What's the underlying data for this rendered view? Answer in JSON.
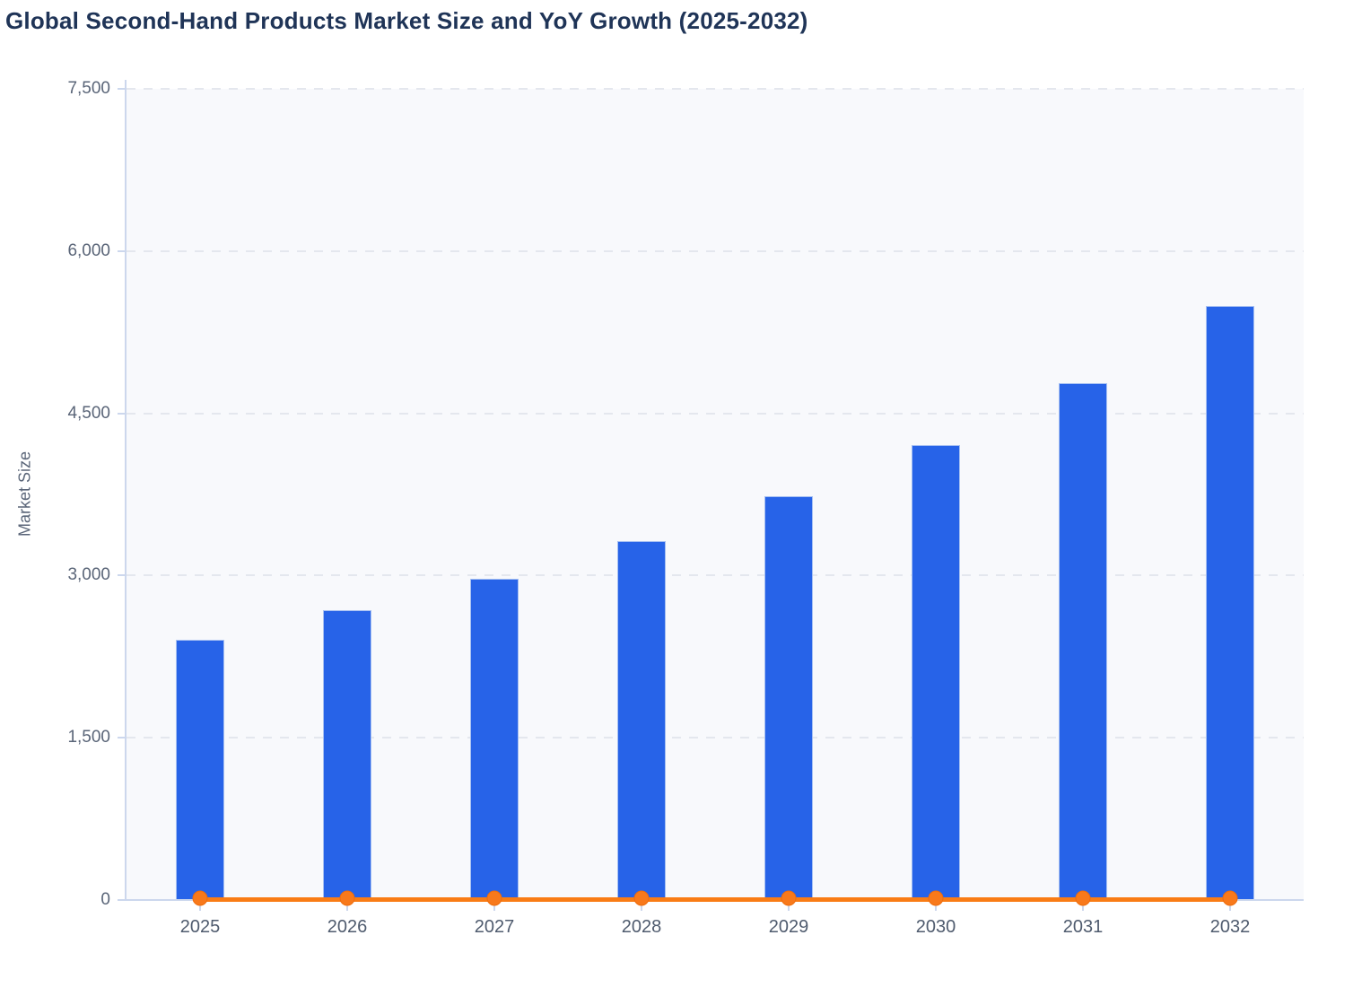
{
  "title": "Global Second-Hand Products Market Size and YoY Growth (2025-2032)",
  "colors": {
    "title": "#1f3457",
    "muted": "#5a6578",
    "plot_bg": "#f8f9fc",
    "grid": "#e4e7ee",
    "axis": "#ccd7ed",
    "bar": "#2763e8",
    "bar_border": "#a7c0f2",
    "line": "#f97c15",
    "dot": "#f8791b",
    "dot_border": "#ee6c0c"
  },
  "chart_data": {
    "type": "bar",
    "title": "Global Second-Hand Products Market Size and YoY Growth (2025-2032)",
    "categories": [
      "2025",
      "2026",
      "2027",
      "2028",
      "2029",
      "2030",
      "2031",
      "2032"
    ],
    "series": [
      {
        "name": "Market Size",
        "type": "bar",
        "values": [
          2410,
          2680,
          2970,
          3320,
          3730,
          4210,
          4780,
          5490
        ]
      },
      {
        "name": "YoY Growth",
        "type": "line",
        "values": [
          0,
          0,
          0,
          0,
          0,
          0,
          0,
          0
        ],
        "note": "Orange line with markers rendered flat at ~0 on the Market Size axis; growth values are not labeled in the image"
      }
    ],
    "xlabel": "",
    "ylabel": "Market Size",
    "ylim": [
      0,
      7500
    ],
    "yticks": [
      "0",
      "1,500",
      "3,000",
      "4,500",
      "6,000",
      "7,500"
    ],
    "grid": "horizontal dashed gridlines",
    "legend_position": "none visible",
    "plot_background": "#f8f9fc"
  }
}
